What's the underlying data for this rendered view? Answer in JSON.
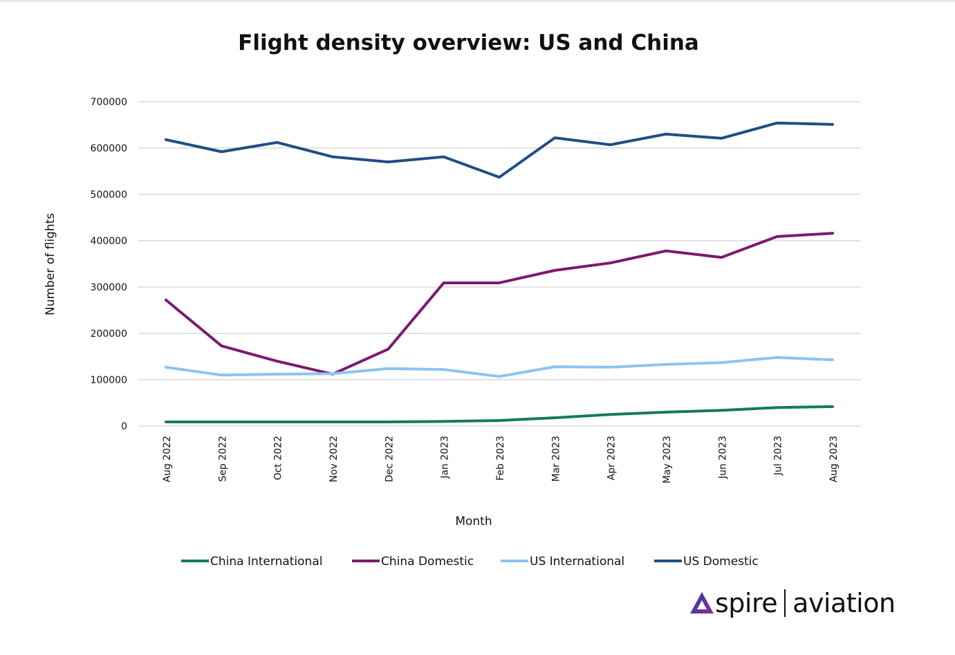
{
  "chart_data": {
    "type": "line",
    "title": "Flight density overview: US and China",
    "xlabel": "Month",
    "ylabel": "Number of flights",
    "categories": [
      "Aug 2022",
      "Sep 2022",
      "Oct 2022",
      "Nov 2022",
      "Dec 2022",
      "Jan 2023",
      "Feb 2023",
      "Mar 2023",
      "Apr 2023",
      "May 2023",
      "Jun 2023",
      "Jul 2023",
      "Aug 2023"
    ],
    "ylim": [
      0,
      700000
    ],
    "yticks": [
      "0",
      "100000",
      "200000",
      "300000",
      "400000",
      "500000",
      "600000",
      "700000"
    ],
    "grid": true,
    "legend_position": "bottom",
    "series": [
      {
        "name": "China International",
        "color": "#137a62",
        "values": [
          9000,
          9000,
          9000,
          9000,
          9000,
          10000,
          12000,
          18000,
          25000,
          30000,
          34000,
          40000,
          42000
        ]
      },
      {
        "name": "China Domestic",
        "color": "#7b1a6e",
        "values": [
          272000,
          173000,
          140000,
          112000,
          166000,
          309000,
          309000,
          336000,
          352000,
          378000,
          364000,
          409000,
          416000
        ]
      },
      {
        "name": "US International",
        "color": "#8cc4ef",
        "values": [
          127000,
          110000,
          112000,
          113000,
          124000,
          122000,
          107000,
          128000,
          127000,
          133000,
          137000,
          148000,
          143000
        ]
      },
      {
        "name": "US Domestic",
        "color": "#1f4e82",
        "values": [
          618000,
          592000,
          612000,
          581000,
          570000,
          581000,
          537000,
          622000,
          607000,
          630000,
          621000,
          654000,
          651000
        ]
      }
    ]
  },
  "logo": {
    "brand": "spire",
    "product": "aviation"
  }
}
